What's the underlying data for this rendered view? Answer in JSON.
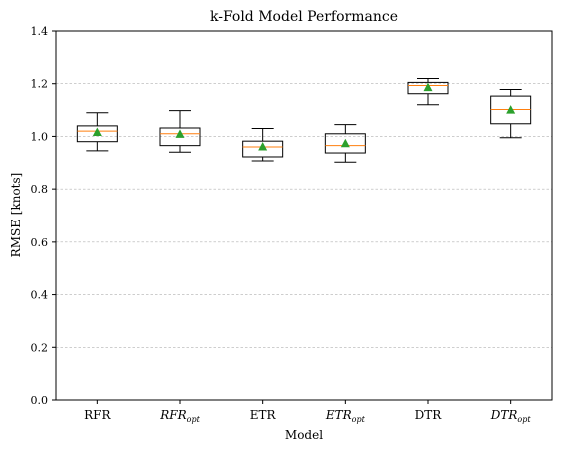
{
  "chart_data": {
    "type": "boxplot",
    "title": "k-Fold Model Performance",
    "xlabel": "Model",
    "ylabel": "RMSE [knots]",
    "ylim": [
      0.0,
      1.4
    ],
    "yticks": [
      "0.0",
      "0.2",
      "0.4",
      "0.6",
      "0.8",
      "1.0",
      "1.2",
      "1.4"
    ],
    "grid": "y-dashed",
    "colors": {
      "box": "#000000",
      "median": "#ff7f0e",
      "mean": "#2ca02c",
      "grid": "#b0b0b0"
    },
    "categories": [
      {
        "label": "RFR",
        "base": "RFR",
        "sub": "",
        "italic": false
      },
      {
        "label": "RFR_opt",
        "base": "RFR",
        "sub": "opt",
        "italic": true
      },
      {
        "label": "ETR",
        "base": "ETR",
        "sub": "",
        "italic": false
      },
      {
        "label": "ETR_opt",
        "base": "ETR",
        "sub": "opt",
        "italic": true
      },
      {
        "label": "DTR",
        "base": "DTR",
        "sub": "",
        "italic": false
      },
      {
        "label": "DTR_opt",
        "base": "DTR",
        "sub": "opt",
        "italic": true
      }
    ],
    "series": [
      {
        "whisker_low": 0.945,
        "q1": 0.98,
        "median": 1.02,
        "q3": 1.04,
        "whisker_high": 1.09,
        "mean": 1.015
      },
      {
        "whisker_low": 0.94,
        "q1": 0.965,
        "median": 1.01,
        "q3": 1.032,
        "whisker_high": 1.098,
        "mean": 1.008
      },
      {
        "whisker_low": 0.907,
        "q1": 0.922,
        "median": 0.96,
        "q3": 0.982,
        "whisker_high": 1.03,
        "mean": 0.96
      },
      {
        "whisker_low": 0.902,
        "q1": 0.937,
        "median": 0.965,
        "q3": 1.01,
        "whisker_high": 1.045,
        "mean": 0.972
      },
      {
        "whisker_low": 1.12,
        "q1": 1.162,
        "median": 1.193,
        "q3": 1.205,
        "whisker_high": 1.22,
        "mean": 1.185
      },
      {
        "whisker_low": 0.995,
        "q1": 1.048,
        "median": 1.102,
        "q3": 1.153,
        "whisker_high": 1.178,
        "mean": 1.1
      }
    ]
  }
}
